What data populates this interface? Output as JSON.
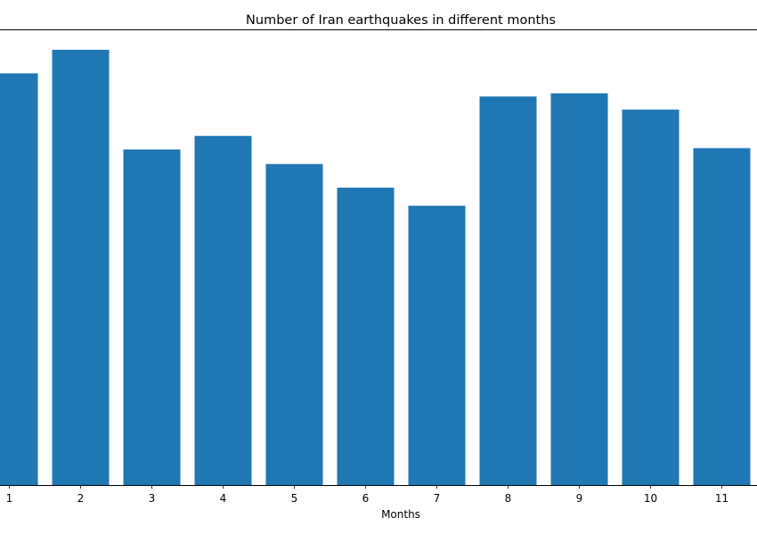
{
  "chart_data": {
    "type": "bar",
    "title": "Number of Iran earthquakes in different months",
    "xlabel": "Months",
    "ylabel": "",
    "categories": [
      "1",
      "2",
      "3",
      "4",
      "5",
      "6",
      "7",
      "8",
      "9",
      "10",
      "11"
    ],
    "values": [
      908,
      960,
      740,
      770,
      708,
      656,
      616,
      857,
      864,
      828,
      743
    ],
    "ylim": [
      0,
      1005
    ],
    "bar_color": "#1f77b4",
    "grid": false,
    "legend": "none"
  }
}
